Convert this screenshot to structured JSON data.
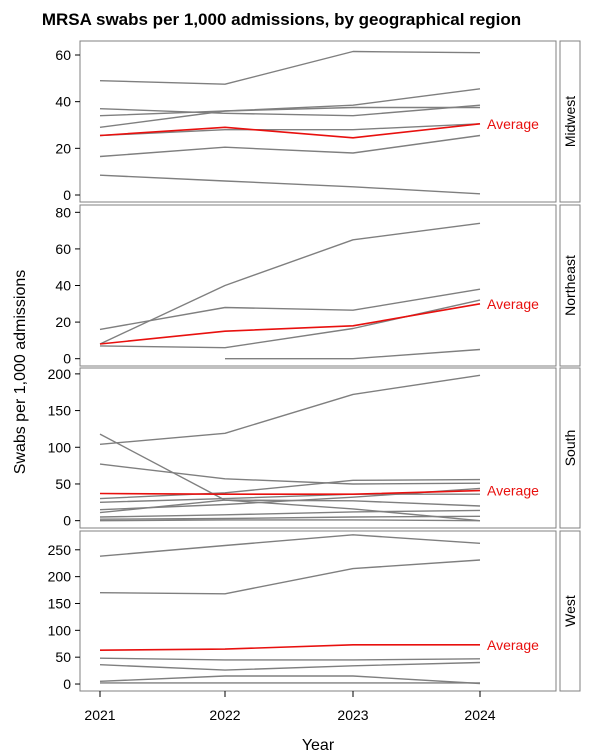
{
  "title": "MRSA swabs per 1,000 admissions, by geographical region",
  "colors": {
    "series": "#7f7f7f",
    "average": "#e8100e",
    "frame": "#808080"
  },
  "chart_data": {
    "type": "line",
    "title": "MRSA swabs per 1,000 admissions, by geographical region",
    "xlabel": "Year",
    "ylabel": "Swabs per 1,000 admissions",
    "x": [
      2021,
      2022,
      2023,
      2024
    ],
    "x_tick_labels": [
      "2021",
      "2022",
      "2023",
      "2024"
    ],
    "grid": false,
    "facets": [
      {
        "name": "Midwest",
        "ylim": [
          -3,
          66
        ],
        "yticks": [
          0,
          20,
          40,
          60
        ],
        "average_label": "Average",
        "average": [
          25.5,
          29,
          24.5,
          30.5
        ],
        "series": [
          {
            "values": [
              49,
              47.5,
              61.5,
              61
            ]
          },
          {
            "values": [
              37,
              35,
              34,
              38.5
            ]
          },
          {
            "values": [
              34,
              36,
              38.5,
              45.5
            ]
          },
          {
            "values": [
              29,
              36,
              37.5,
              37.5
            ]
          },
          {
            "values": [
              25.5,
              28,
              28,
              30.5
            ]
          },
          {
            "values": [
              16.5,
              20.5,
              18,
              25.5
            ]
          },
          {
            "values": [
              8.5,
              6,
              3.5,
              0.5
            ]
          }
        ]
      },
      {
        "name": "Northeast",
        "ylim": [
          -4,
          84
        ],
        "yticks": [
          0,
          20,
          40,
          60,
          80
        ],
        "average_label": "Average",
        "average": [
          8,
          15,
          18,
          30
        ],
        "series": [
          {
            "values": [
              8,
              40,
              65,
              74
            ]
          },
          {
            "values": [
              16,
              28,
              26.5,
              38
            ]
          },
          {
            "values": [
              7,
              6,
              16.5,
              32
            ]
          },
          {
            "values": [
              null,
              0,
              0,
              5
            ]
          }
        ]
      },
      {
        "name": "South",
        "ylim": [
          -10,
          208
        ],
        "yticks": [
          0,
          50,
          100,
          150,
          200
        ],
        "average_label": "Average",
        "average": [
          37,
          36,
          36,
          41
        ],
        "series": [
          {
            "values": [
              104,
              119,
              172,
              198
            ]
          },
          {
            "values": [
              118,
              28,
              16,
              0
            ]
          },
          {
            "values": [
              77,
              57,
              50,
              51
            ]
          },
          {
            "values": [
              30,
              38,
              55,
              56
            ]
          },
          {
            "values": [
              25,
              30,
              36,
              36
            ]
          },
          {
            "values": [
              15,
              22,
              32,
              44
            ]
          },
          {
            "values": [
              11,
              28,
              27,
              20
            ]
          },
          {
            "values": [
              5,
              8,
              12,
              14
            ]
          },
          {
            "values": [
              2,
              3,
              5,
              6
            ]
          },
          {
            "values": [
              0,
              1,
              1,
              0
            ]
          }
        ]
      },
      {
        "name": "West",
        "ylim": [
          -13,
          285
        ],
        "yticks": [
          0,
          50,
          100,
          150,
          200,
          250
        ],
        "average_label": "Average",
        "average": [
          63,
          65,
          73,
          73
        ],
        "series": [
          {
            "values": [
              238,
              258,
              278,
              262
            ]
          },
          {
            "values": [
              170,
              168,
              215,
              231
            ]
          },
          {
            "values": [
              48,
              45,
              45,
              47
            ]
          },
          {
            "values": [
              36,
              26,
              34,
              40
            ]
          },
          {
            "values": [
              5,
              15,
              15,
              1
            ]
          },
          {
            "values": [
              2,
              2,
              2,
              2
            ]
          }
        ]
      }
    ]
  }
}
